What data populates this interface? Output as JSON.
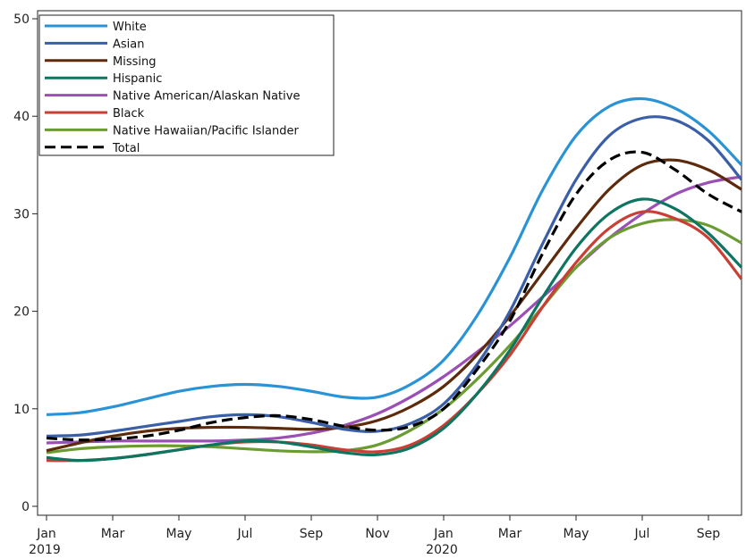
{
  "chart_data": {
    "type": "line",
    "xlim": [
      "2019-01",
      "2020-10"
    ],
    "ylim": [
      0,
      50
    ],
    "yticks": [
      0,
      10,
      20,
      30,
      40,
      50
    ],
    "xticks": [
      {
        "x": "2019-01",
        "label": "Jan",
        "sublabel": "2019"
      },
      {
        "x": "2019-03",
        "label": "Mar",
        "sublabel": ""
      },
      {
        "x": "2019-05",
        "label": "May",
        "sublabel": ""
      },
      {
        "x": "2019-07",
        "label": "Jul",
        "sublabel": ""
      },
      {
        "x": "2019-09",
        "label": "Sep",
        "sublabel": ""
      },
      {
        "x": "2019-11",
        "label": "Nov",
        "sublabel": ""
      },
      {
        "x": "2020-01",
        "label": "Jan",
        "sublabel": "2020"
      },
      {
        "x": "2020-03",
        "label": "Mar",
        "sublabel": ""
      },
      {
        "x": "2020-05",
        "label": "May",
        "sublabel": ""
      },
      {
        "x": "2020-07",
        "label": "Jul",
        "sublabel": ""
      },
      {
        "x": "2020-09",
        "label": "Sep",
        "sublabel": ""
      }
    ],
    "grid": false,
    "legend_position": "top-left",
    "x": [
      "2019-01",
      "2019-02",
      "2019-03",
      "2019-04",
      "2019-05",
      "2019-06",
      "2019-07",
      "2019-08",
      "2019-09",
      "2019-10",
      "2019-11",
      "2019-12",
      "2020-01",
      "2020-02",
      "2020-03",
      "2020-04",
      "2020-05",
      "2020-06",
      "2020-07",
      "2020-08",
      "2020-09",
      "2020-10"
    ],
    "series": [
      {
        "name": "White",
        "color": "#2a93d5",
        "dash": false,
        "values": [
          9.4,
          9.6,
          10.2,
          11.0,
          11.8,
          12.3,
          12.5,
          12.3,
          11.8,
          11.2,
          11.2,
          12.5,
          15.0,
          19.5,
          25.5,
          32.5,
          38.0,
          41.0,
          41.8,
          40.8,
          38.5,
          35.0
        ]
      },
      {
        "name": "Asian",
        "color": "#3a5fa8",
        "dash": false,
        "values": [
          7.2,
          7.3,
          7.7,
          8.2,
          8.7,
          9.2,
          9.4,
          9.2,
          8.6,
          7.9,
          7.7,
          8.5,
          10.5,
          14.5,
          20.0,
          27.0,
          33.5,
          38.0,
          39.8,
          39.6,
          37.5,
          33.5
        ]
      },
      {
        "name": "Missing",
        "color": "#5e2a0c",
        "dash": false,
        "values": [
          5.7,
          6.5,
          7.2,
          7.7,
          8.0,
          8.1,
          8.1,
          8.0,
          7.9,
          8.1,
          8.8,
          10.2,
          12.3,
          15.5,
          19.5,
          24.0,
          28.5,
          32.5,
          35.0,
          35.5,
          34.5,
          32.5
        ]
      },
      {
        "name": "Hispanic",
        "color": "#0d7560",
        "dash": false,
        "values": [
          5.0,
          4.7,
          4.9,
          5.3,
          5.8,
          6.3,
          6.7,
          6.6,
          6.1,
          5.5,
          5.3,
          6.0,
          8.0,
          11.5,
          16.0,
          21.5,
          26.5,
          30.0,
          31.5,
          30.5,
          28.0,
          24.5
        ]
      },
      {
        "name": "Native American/Alaskan Native",
        "color": "#9b4fb4",
        "dash": false,
        "values": [
          6.5,
          6.6,
          6.7,
          6.7,
          6.7,
          6.7,
          6.8,
          7.0,
          7.5,
          8.3,
          9.5,
          11.2,
          13.3,
          15.8,
          18.5,
          21.5,
          24.5,
          27.5,
          30.0,
          32.0,
          33.2,
          33.8
        ]
      },
      {
        "name": "Black",
        "color": "#c93f35",
        "dash": false,
        "values": [
          4.7,
          4.7,
          4.9,
          5.3,
          5.8,
          6.3,
          6.6,
          6.6,
          6.3,
          5.8,
          5.6,
          6.3,
          8.3,
          11.5,
          15.5,
          20.5,
          25.0,
          28.5,
          30.2,
          29.5,
          27.5,
          23.3
        ]
      },
      {
        "name": "Native Hawaiian/Pacific Islander",
        "color": "#6a9c32",
        "dash": false,
        "values": [
          5.5,
          5.9,
          6.1,
          6.2,
          6.2,
          6.1,
          5.9,
          5.7,
          5.6,
          5.7,
          6.3,
          7.8,
          10.0,
          13.0,
          16.5,
          20.5,
          24.5,
          27.5,
          29.0,
          29.4,
          28.8,
          27.0
        ]
      },
      {
        "name": "Total",
        "color": "#000000",
        "dash": true,
        "values": [
          7.0,
          6.8,
          6.9,
          7.2,
          7.8,
          8.6,
          9.1,
          9.3,
          8.9,
          8.2,
          7.8,
          8.2,
          10.0,
          14.0,
          19.0,
          26.0,
          32.0,
          35.5,
          36.3,
          34.5,
          32.0,
          30.2
        ]
      }
    ]
  }
}
